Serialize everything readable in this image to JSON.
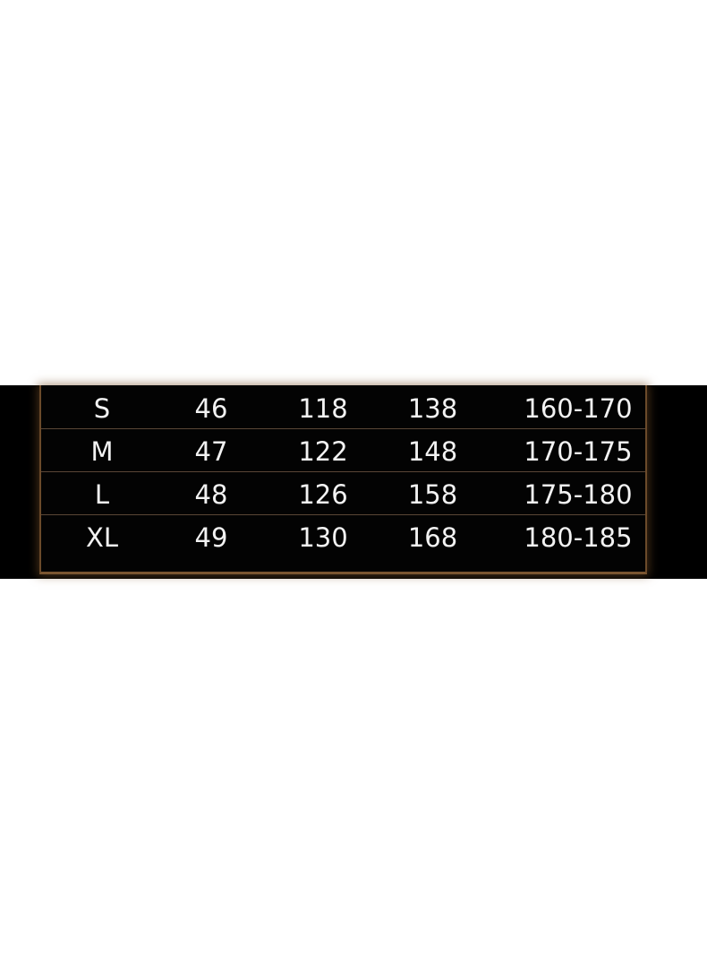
{
  "size_chart": {
    "rows": [
      [
        "S",
        "46",
        "118",
        "138",
        "160-170"
      ],
      [
        "M",
        "47",
        "122",
        "148",
        "170-175"
      ],
      [
        "L",
        "48",
        "126",
        "158",
        "175-180"
      ],
      [
        "XL",
        "49",
        "130",
        "168",
        "180-185"
      ]
    ],
    "colors": {
      "background": "#000000",
      "border": "#6b4a2a",
      "text": "#f2f2f2"
    }
  }
}
